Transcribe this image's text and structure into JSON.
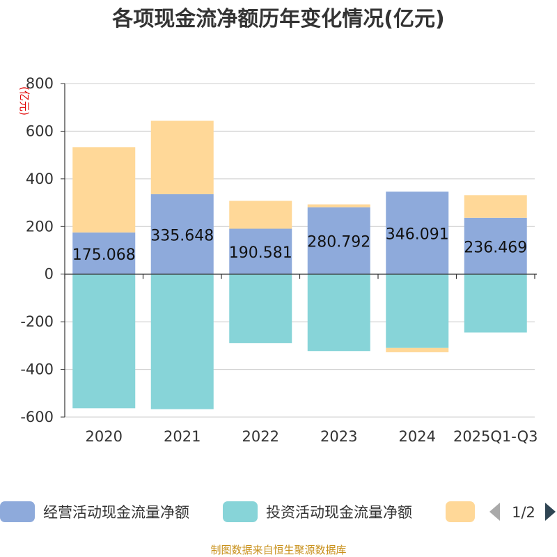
{
  "chart_data": {
    "type": "bar",
    "stacked": true,
    "title": "各项现金流净额历年变化情况(亿元)",
    "ylabel": "(亿元)",
    "ylim": [
      -600,
      800
    ],
    "yticks": [
      800,
      600,
      400,
      200,
      0,
      -200,
      -400,
      -600
    ],
    "categories": [
      "2020",
      "2021",
      "2022",
      "2023",
      "2024",
      "2025Q1-Q3"
    ],
    "series": [
      {
        "name": "经营活动现金流量净额",
        "color": "#8eaadb",
        "values": [
          175.068,
          335.648,
          190.581,
          280.792,
          346.091,
          236.469
        ],
        "labels": [
          "175.068",
          "335.648",
          "190.581",
          "280.792",
          "346.091",
          "236.469"
        ]
      },
      {
        "name": "投资活动现金流量净额",
        "color": "#87d4d8",
        "values": [
          -563,
          -567,
          -290,
          -323,
          -310,
          -245
        ]
      },
      {
        "name": "",
        "color": "#ffd898",
        "values": [
          358,
          308,
          117,
          12,
          -18,
          95
        ]
      }
    ],
    "legend": {
      "position": "bottom",
      "page": "1/2"
    }
  },
  "footer": "制图数据来自恒生聚源数据库"
}
